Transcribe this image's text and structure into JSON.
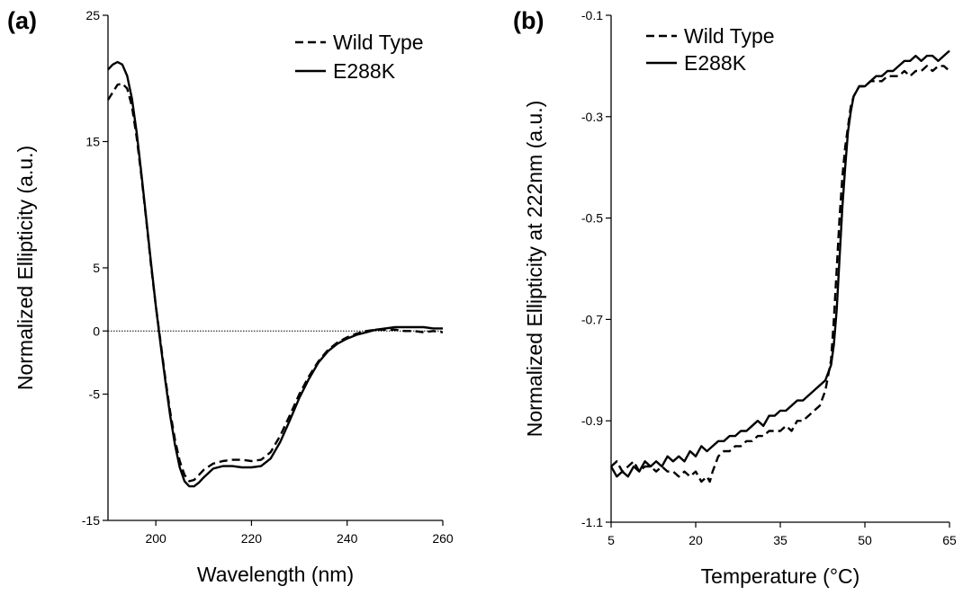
{
  "chart_data": [
    {
      "type": "line",
      "panel_label": "(a)",
      "xlabel": "Wavelength (nm)",
      "ylabel": "Normalized Ellipticity (a.u.)",
      "xlim": [
        190,
        260
      ],
      "ylim": [
        -15,
        25
      ],
      "xticks": [
        200,
        220,
        240,
        260
      ],
      "xtick_labels": [
        "200",
        "220",
        "240",
        "260"
      ],
      "yticks": [
        -15,
        -5,
        0,
        5,
        15,
        25
      ],
      "ytick_labels": [
        "-15",
        "-5",
        "0",
        "5",
        "15",
        "25"
      ],
      "reference_line_y": 0,
      "legend_position": "top-right",
      "series": [
        {
          "name": "Wild Type",
          "style": "dashed",
          "x": [
            190,
            192,
            193,
            194,
            195,
            196,
            197,
            198,
            199,
            200,
            201,
            202,
            203,
            204,
            205,
            206,
            207,
            208,
            209,
            210,
            212,
            214,
            216,
            218,
            220,
            222,
            224,
            226,
            228,
            230,
            232,
            234,
            236,
            238,
            240,
            242,
            244,
            246,
            248,
            250,
            252,
            254,
            256,
            258,
            260
          ],
          "y": [
            18.3,
            19.5,
            19.6,
            19.2,
            17.8,
            15.3,
            12.2,
            8.8,
            5.2,
            2.0,
            -0.9,
            -3.8,
            -6.4,
            -8.6,
            -10.3,
            -11.4,
            -11.9,
            -11.8,
            -11.4,
            -11.0,
            -10.5,
            -10.3,
            -10.2,
            -10.2,
            -10.3,
            -10.2,
            -9.6,
            -8.3,
            -6.7,
            -5.0,
            -3.6,
            -2.4,
            -1.5,
            -0.9,
            -0.5,
            -0.2,
            0.0,
            0.1,
            0.1,
            0.1,
            0.0,
            0.0,
            -0.1,
            0.0,
            -0.1
          ]
        },
        {
          "name": "E288K",
          "style": "solid",
          "x": [
            190,
            191,
            192,
            193,
            194,
            195,
            196,
            197,
            198,
            199,
            200,
            201,
            202,
            203,
            204,
            205,
            206,
            207,
            208,
            209,
            210,
            212,
            214,
            216,
            218,
            220,
            222,
            224,
            226,
            228,
            230,
            232,
            234,
            236,
            238,
            240,
            242,
            244,
            246,
            248,
            250,
            252,
            254,
            256,
            258,
            260
          ],
          "y": [
            20.7,
            21.1,
            21.3,
            21.1,
            20.2,
            18.4,
            15.7,
            12.4,
            8.9,
            5.4,
            2.0,
            -1.1,
            -4.0,
            -6.7,
            -9.0,
            -10.8,
            -11.9,
            -12.3,
            -12.3,
            -12.0,
            -11.6,
            -10.9,
            -10.7,
            -10.7,
            -10.8,
            -10.8,
            -10.7,
            -10.1,
            -8.8,
            -7.1,
            -5.3,
            -3.8,
            -2.5,
            -1.6,
            -1.0,
            -0.6,
            -0.3,
            -0.1,
            0.1,
            0.2,
            0.3,
            0.3,
            0.3,
            0.3,
            0.2,
            0.2
          ]
        }
      ]
    },
    {
      "type": "line",
      "panel_label": "(b)",
      "xlabel": "Temperature (°C)",
      "ylabel": "Normalized Ellipticity at 222nm (a.u.)",
      "xlim": [
        5,
        65
      ],
      "ylim": [
        -1.1,
        -0.1
      ],
      "xticks": [
        5,
        20,
        35,
        50,
        65
      ],
      "xtick_labels": [
        "5",
        "20",
        "35",
        "50",
        "65"
      ],
      "yticks": [
        -1.1,
        -0.9,
        -0.7,
        -0.5,
        -0.3,
        -0.1
      ],
      "ytick_labels": [
        "-1.1",
        "-0.9",
        "-0.7",
        "-0.5",
        "-0.3",
        "-0.1"
      ],
      "legend_position": "top-left",
      "series": [
        {
          "name": "Wild Type",
          "style": "dashed",
          "x": [
            5,
            6,
            7,
            8,
            9,
            10,
            11,
            12,
            13,
            14,
            15,
            16,
            17,
            18,
            19,
            20,
            21,
            22,
            22.5,
            23,
            24,
            25,
            26,
            27,
            28,
            29,
            30,
            31,
            32,
            33,
            34,
            35,
            36,
            37,
            38,
            39,
            40,
            41,
            42,
            43,
            44,
            44.5,
            45,
            45.5,
            46,
            46.5,
            47,
            47.5,
            48,
            49,
            50,
            51,
            52,
            53,
            54,
            55,
            56,
            57,
            58,
            59,
            60,
            61,
            62,
            63,
            64,
            65
          ],
          "y": [
            -0.99,
            -0.98,
            -1.0,
            -0.99,
            -0.98,
            -1.0,
            -0.99,
            -0.99,
            -1.0,
            -0.99,
            -1.0,
            -1.0,
            -1.01,
            -1.0,
            -1.01,
            -1.0,
            -1.02,
            -1.01,
            -1.02,
            -1.0,
            -0.97,
            -0.96,
            -0.96,
            -0.95,
            -0.95,
            -0.94,
            -0.94,
            -0.93,
            -0.93,
            -0.92,
            -0.92,
            -0.92,
            -0.91,
            -0.92,
            -0.9,
            -0.9,
            -0.89,
            -0.88,
            -0.87,
            -0.84,
            -0.78,
            -0.7,
            -0.6,
            -0.5,
            -0.42,
            -0.36,
            -0.32,
            -0.28,
            -0.26,
            -0.24,
            -0.24,
            -0.23,
            -0.23,
            -0.23,
            -0.22,
            -0.22,
            -0.22,
            -0.21,
            -0.22,
            -0.21,
            -0.21,
            -0.2,
            -0.21,
            -0.2,
            -0.2,
            -0.21
          ]
        },
        {
          "name": "E288K",
          "style": "solid",
          "x": [
            5,
            6,
            7,
            8,
            9,
            10,
            11,
            12,
            13,
            14,
            15,
            16,
            17,
            18,
            19,
            20,
            21,
            22,
            23,
            24,
            25,
            26,
            27,
            28,
            29,
            30,
            31,
            32,
            33,
            34,
            35,
            36,
            37,
            38,
            39,
            40,
            41,
            42,
            43,
            44,
            44.5,
            45,
            45.5,
            46,
            46.5,
            47,
            47.5,
            48,
            49,
            50,
            51,
            52,
            53,
            54,
            55,
            56,
            57,
            58,
            59,
            60,
            61,
            62,
            63,
            64,
            65
          ],
          "y": [
            -0.99,
            -1.01,
            -1.0,
            -1.01,
            -0.99,
            -1.0,
            -0.98,
            -0.99,
            -0.98,
            -0.99,
            -0.97,
            -0.98,
            -0.97,
            -0.98,
            -0.96,
            -0.97,
            -0.95,
            -0.96,
            -0.95,
            -0.94,
            -0.94,
            -0.93,
            -0.93,
            -0.92,
            -0.92,
            -0.91,
            -0.9,
            -0.91,
            -0.89,
            -0.89,
            -0.88,
            -0.88,
            -0.87,
            -0.86,
            -0.86,
            -0.85,
            -0.84,
            -0.83,
            -0.82,
            -0.79,
            -0.75,
            -0.68,
            -0.58,
            -0.48,
            -0.4,
            -0.33,
            -0.29,
            -0.26,
            -0.24,
            -0.24,
            -0.23,
            -0.22,
            -0.22,
            -0.21,
            -0.21,
            -0.2,
            -0.19,
            -0.19,
            -0.18,
            -0.19,
            -0.18,
            -0.18,
            -0.19,
            -0.18,
            -0.17
          ]
        }
      ]
    }
  ]
}
